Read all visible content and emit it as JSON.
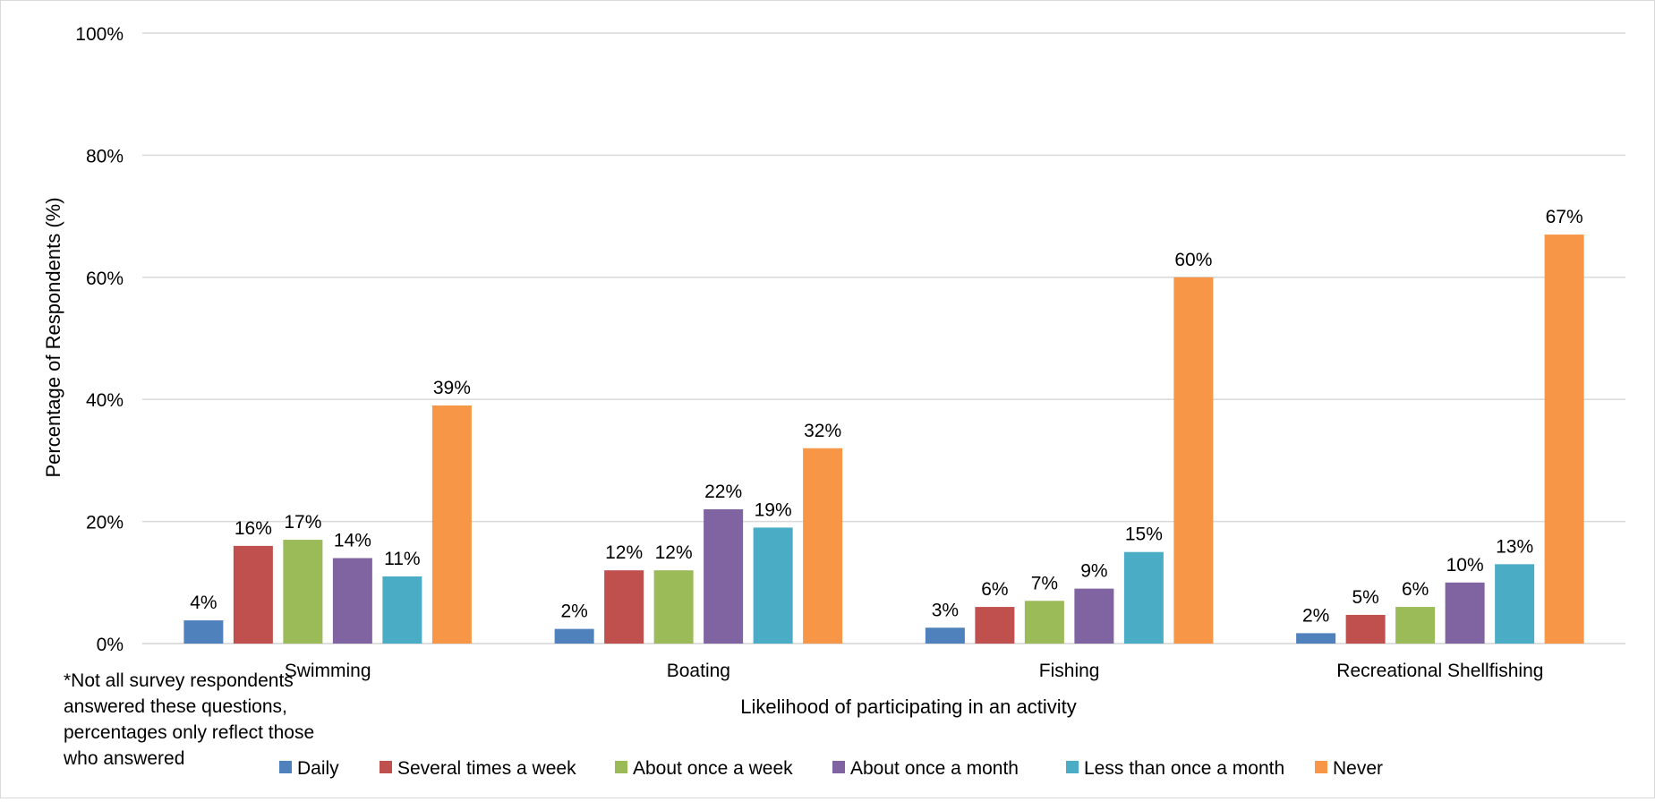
{
  "chart_data": {
    "type": "bar",
    "categories": [
      "Swimming",
      "Boating",
      "Fishing",
      "Recreational Shellfishing"
    ],
    "series": [
      {
        "name": "Daily",
        "values": [
          4,
          2,
          3,
          2
        ],
        "color": "#4f81bd"
      },
      {
        "name": "Several times a week",
        "values": [
          16,
          12,
          6,
          5
        ],
        "color": "#c0504d"
      },
      {
        "name": "About once a week",
        "values": [
          17,
          12,
          7,
          6
        ],
        "color": "#9bbb59"
      },
      {
        "name": "About once a month",
        "values": [
          14,
          22,
          9,
          10
        ],
        "color": "#8064a2"
      },
      {
        "name": "Less than once a month",
        "values": [
          11,
          19,
          15,
          13
        ],
        "color": "#4bacc6"
      },
      {
        "name": "Never",
        "values": [
          39,
          32,
          60,
          67
        ],
        "color": "#f79646"
      }
    ],
    "bar_heights": {
      "Daily": [
        3.8,
        2.4,
        2.6,
        1.7
      ],
      "Several times a week": [
        16,
        12,
        6,
        4.7
      ]
    },
    "xlabel": "Likelihood of participating in an activity",
    "ylabel": "Percentage of Respondents (%)",
    "ylim": [
      0,
      100
    ],
    "yticks": [
      "0%",
      "20%",
      "40%",
      "60%",
      "80%",
      "100%"
    ],
    "ytick_values": [
      0,
      20,
      40,
      60,
      80,
      100
    ],
    "grid": true,
    "legend_position": "bottom",
    "footnote": [
      "*Not all survey respondents",
      "answered these questions,",
      "percentages only reflect those",
      "who answered"
    ]
  }
}
